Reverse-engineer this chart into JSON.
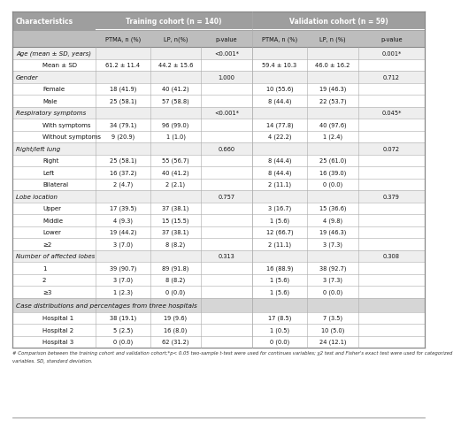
{
  "col1_header": "Characteristics",
  "train_header": "Training cohort (n = 140)",
  "val_header": "Validation cohort (n = 59)",
  "subheaders": [
    "",
    "",
    "PTMA, n (%)",
    "LP, n(%)",
    "p-value",
    "PTMA, n (%)",
    "LP, n (%)",
    "p-value"
  ],
  "rows": [
    {
      "label": "Age (mean ± SD, years)",
      "indent": 0,
      "values": [
        "",
        "",
        "<0.001*",
        "",
        "",
        "0.001*"
      ],
      "cat_header": false
    },
    {
      "label": "Mean ± SD",
      "indent": 1,
      "values": [
        "61.2 ± 11.4",
        "44.2 ± 15.6",
        "",
        "59.4 ± 10.3",
        "46.0 ± 16.2",
        ""
      ],
      "cat_header": false
    },
    {
      "label": "Gender",
      "indent": 0,
      "values": [
        "",
        "",
        "1.000",
        "",
        "",
        "0.712"
      ],
      "cat_header": false
    },
    {
      "label": "Female",
      "indent": 1,
      "values": [
        "18 (41.9)",
        "40 (41.2)",
        "",
        "10 (55.6)",
        "19 (46.3)",
        ""
      ],
      "cat_header": false
    },
    {
      "label": "Male",
      "indent": 1,
      "values": [
        "25 (58.1)",
        "57 (58.8)",
        "",
        "8 (44.4)",
        "22 (53.7)",
        ""
      ],
      "cat_header": false
    },
    {
      "label": "Respiratory symptoms",
      "indent": 0,
      "values": [
        "",
        "",
        "<0.001*",
        "",
        "",
        "0.045*"
      ],
      "cat_header": false
    },
    {
      "label": "With symptoms",
      "indent": 1,
      "values": [
        "34 (79.1)",
        "96 (99.0)",
        "",
        "14 (77.8)",
        "40 (97.6)",
        ""
      ],
      "cat_header": false
    },
    {
      "label": "Without symptoms",
      "indent": 1,
      "values": [
        "9 (20.9)",
        "1 (1.0)",
        "",
        "4 (22.2)",
        "1 (2.4)",
        ""
      ],
      "cat_header": false
    },
    {
      "label": "Right/left lung",
      "indent": 0,
      "values": [
        "",
        "",
        "0.660",
        "",
        "",
        "0.072"
      ],
      "cat_header": false
    },
    {
      "label": "Right",
      "indent": 1,
      "values": [
        "25 (58.1)",
        "55 (56.7)",
        "",
        "8 (44.4)",
        "25 (61.0)",
        ""
      ],
      "cat_header": false
    },
    {
      "label": "Left",
      "indent": 1,
      "values": [
        "16 (37.2)",
        "40 (41.2)",
        "",
        "8 (44.4)",
        "16 (39.0)",
        ""
      ],
      "cat_header": false
    },
    {
      "label": "Bilateral",
      "indent": 1,
      "values": [
        "2 (4.7)",
        "2 (2.1)",
        "",
        "2 (11.1)",
        "0 (0.0)",
        ""
      ],
      "cat_header": false
    },
    {
      "label": "Lobe location",
      "indent": 0,
      "values": [
        "",
        "",
        "0.757",
        "",
        "",
        "0.379"
      ],
      "cat_header": false
    },
    {
      "label": "Upper",
      "indent": 1,
      "values": [
        "17 (39.5)",
        "37 (38.1)",
        "",
        "3 (16.7)",
        "15 (36.6)",
        ""
      ],
      "cat_header": false
    },
    {
      "label": "Middle",
      "indent": 1,
      "values": [
        "4 (9.3)",
        "15 (15.5)",
        "",
        "1 (5.6)",
        "4 (9.8)",
        ""
      ],
      "cat_header": false
    },
    {
      "label": "Lower",
      "indent": 1,
      "values": [
        "19 (44.2)",
        "37 (38.1)",
        "",
        "12 (66.7)",
        "19 (46.3)",
        ""
      ],
      "cat_header": false
    },
    {
      "label": "≥2",
      "indent": 1,
      "values": [
        "3 (7.0)",
        "8 (8.2)",
        "",
        "2 (11.1)",
        "3 (7.3)",
        ""
      ],
      "cat_header": false
    },
    {
      "label": "Number of affected lobes",
      "indent": 0,
      "values": [
        "",
        "",
        "0.313",
        "",
        "",
        "0.308"
      ],
      "cat_header": false
    },
    {
      "label": "1",
      "indent": 1,
      "values": [
        "39 (90.7)",
        "89 (91.8)",
        "",
        "16 (88.9)",
        "38 (92.7)",
        ""
      ],
      "cat_header": false
    },
    {
      "label": "2",
      "indent": 1,
      "values": [
        "3 (7.0)",
        "8 (8.2)",
        "",
        "1 (5.6)",
        "3 (7.3)",
        ""
      ],
      "cat_header": false
    },
    {
      "label": "≥3",
      "indent": 1,
      "values": [
        "1 (2.3)",
        "0 (0.0)",
        "",
        "1 (5.6)",
        "0 (0.0)",
        ""
      ],
      "cat_header": false
    },
    {
      "label": "Case distributions and percentages from three hospitals",
      "indent": 0,
      "values": [
        "",
        "",
        "",
        "",
        "",
        ""
      ],
      "cat_header": true
    },
    {
      "label": "Hospital 1",
      "indent": 1,
      "values": [
        "38 (19.1)",
        "19 (9.6)",
        "",
        "17 (8.5)",
        "7 (3.5)",
        ""
      ],
      "cat_header": false
    },
    {
      "label": "Hospital 2",
      "indent": 1,
      "values": [
        "5 (2.5)",
        "16 (8.0)",
        "",
        "1 (0.5)",
        "10 (5.0)",
        ""
      ],
      "cat_header": false
    },
    {
      "label": "Hospital 3",
      "indent": 1,
      "values": [
        "0 (0.0)",
        "62 (31.2)",
        "",
        "0 (0.0)",
        "24 (12.1)",
        ""
      ],
      "cat_header": false
    }
  ],
  "footnote1": "# Comparison between the training cohort and validation cohort;*p< 0.05 two-sample t-test were used for continues variables; χ2 test and Fisher's exact test were used for categorized",
  "footnote2": "variables. SD, standard deviation.",
  "header_bg": "#9e9e9e",
  "subheader_bg": "#bdbdbd",
  "cat_row_bg": "#d6d6d6",
  "group_row_bg": "#eeeeee",
  "data_row_bg": "#ffffff",
  "line_color": "#aaaaaa",
  "border_color": "#888888",
  "text_dark": "#111111",
  "text_header": "#ffffff"
}
